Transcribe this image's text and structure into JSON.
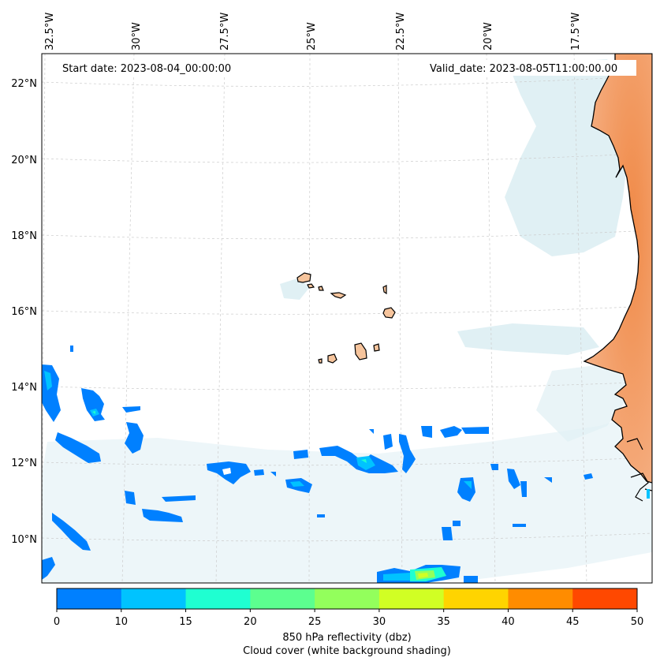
{
  "map": {
    "start_date_text": "Start date: 2023-08-04_00:00:00",
    "valid_date_text": "Valid_date: 2023-08-05T11:00:00.00",
    "lon_labels": [
      "32.5°W",
      "30°W",
      "27.5°W",
      "25°W",
      "22.5°W",
      "20°W",
      "17.5°W"
    ],
    "lat_labels": [
      "22°N",
      "20°N",
      "18°N",
      "16°N",
      "14°N",
      "12°N",
      "10°N"
    ],
    "extent": {
      "lon_min": -32.6,
      "lon_max": -15.1,
      "lat_min": 8.9,
      "lat_max": 22.8
    }
  },
  "colorbar": {
    "ticks": [
      "0",
      "10",
      "15",
      "20",
      "25",
      "30",
      "35",
      "40",
      "45",
      "50"
    ],
    "colors": [
      "#0080ff",
      "#00c3ff",
      "#1fffd1",
      "#5cff8f",
      "#93ff5c",
      "#d1ff24",
      "#ffd400",
      "#ff8c00",
      "#ff4800"
    ],
    "label_line1": "850 hPa reflectivity (dbz)",
    "label_line2": "Cloud cover (white background shading)"
  }
}
